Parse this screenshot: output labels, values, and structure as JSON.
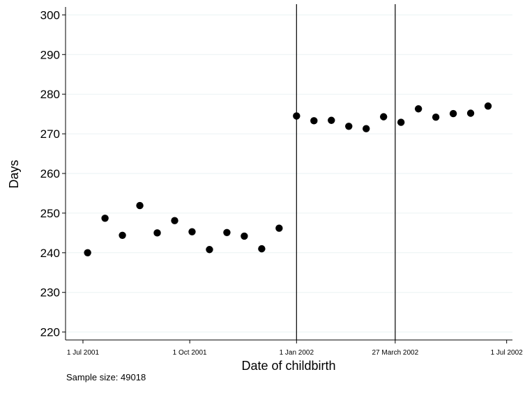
{
  "chart_data": {
    "type": "scatter",
    "title": "",
    "xlabel": "Date of childbirth",
    "ylabel": "Days",
    "ylim": [
      218,
      302
    ],
    "yticks": [
      220,
      230,
      240,
      250,
      260,
      270,
      280,
      290,
      300
    ],
    "xlim": [
      "2001-06-16",
      "2002-07-06"
    ],
    "xticks": [
      {
        "date": "2001-07-01",
        "label": "1 Jul 2001"
      },
      {
        "date": "2001-10-01",
        "label": "1 Oct 2001"
      },
      {
        "date": "2002-01-01",
        "label": "1 Jan 2002"
      },
      {
        "date": "2002-03-27",
        "label": "27 March 2002"
      },
      {
        "date": "2002-07-01",
        "label": "1 Jul 2002"
      }
    ],
    "vlines": [
      "2002-01-01",
      "2002-03-27"
    ],
    "grid": "horizontal",
    "marker_color": "#000000",
    "points": [
      {
        "x": "2001-07-05",
        "y": 240.0
      },
      {
        "x": "2001-07-20",
        "y": 248.7
      },
      {
        "x": "2001-08-04",
        "y": 244.4
      },
      {
        "x": "2001-08-19",
        "y": 251.9
      },
      {
        "x": "2001-09-03",
        "y": 245.0
      },
      {
        "x": "2001-09-18",
        "y": 248.1
      },
      {
        "x": "2001-10-03",
        "y": 245.3
      },
      {
        "x": "2001-10-18",
        "y": 240.8
      },
      {
        "x": "2001-11-02",
        "y": 245.1
      },
      {
        "x": "2001-11-17",
        "y": 244.2
      },
      {
        "x": "2001-12-02",
        "y": 241.0
      },
      {
        "x": "2001-12-17",
        "y": 246.2
      },
      {
        "x": "2002-01-01",
        "y": 274.5
      },
      {
        "x": "2002-01-16",
        "y": 273.3
      },
      {
        "x": "2002-01-31",
        "y": 273.4
      },
      {
        "x": "2002-02-15",
        "y": 271.9
      },
      {
        "x": "2002-03-02",
        "y": 271.3
      },
      {
        "x": "2002-03-17",
        "y": 274.3
      },
      {
        "x": "2002-04-01",
        "y": 272.9
      },
      {
        "x": "2002-04-16",
        "y": 276.3
      },
      {
        "x": "2002-05-01",
        "y": 274.2
      },
      {
        "x": "2002-05-16",
        "y": 275.1
      },
      {
        "x": "2002-05-31",
        "y": 275.2
      },
      {
        "x": "2002-06-15",
        "y": 277.0
      }
    ]
  },
  "note": "Sample size: 49018"
}
